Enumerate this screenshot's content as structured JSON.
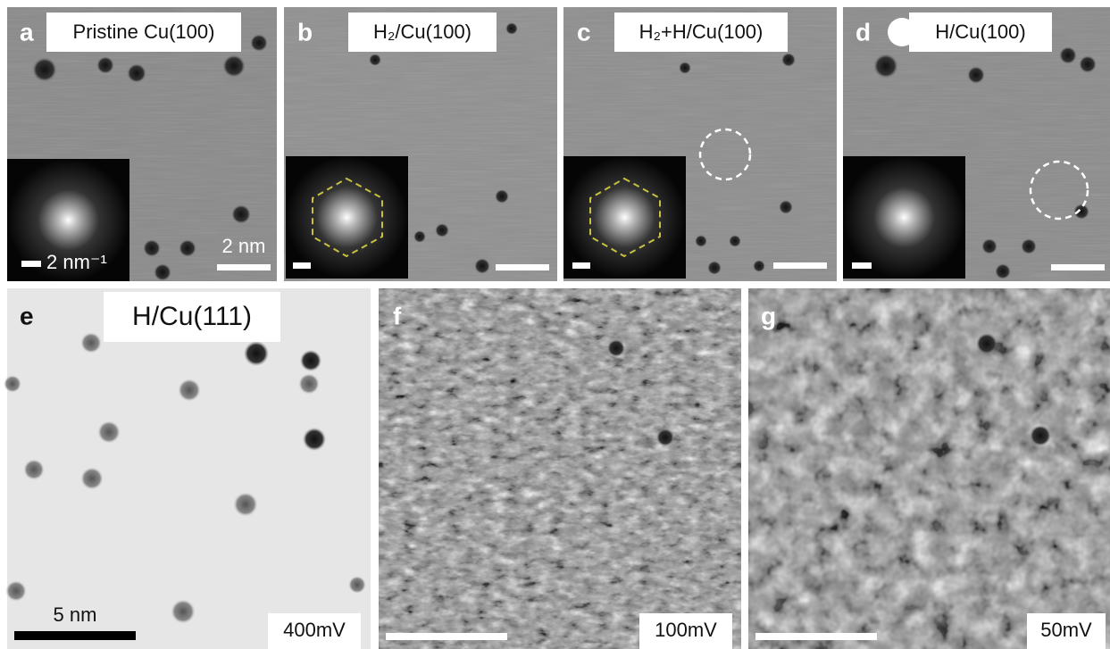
{
  "panels": [
    {
      "letter": "a",
      "label": "Pristine Cu(100)",
      "scale": "2 nm",
      "inset_scale": "2 nm⁻¹"
    },
    {
      "letter": "b",
      "label": "H₂/Cu(100)"
    },
    {
      "letter": "c",
      "label": "H₂+H/Cu(100)"
    },
    {
      "letter": "d",
      "label": "H/Cu(100)"
    },
    {
      "letter": "e",
      "label": "H/Cu(111)",
      "scale": "5 nm",
      "bias": "400mV"
    },
    {
      "letter": "f",
      "bias": "100mV"
    },
    {
      "letter": "g",
      "bias": "50mV"
    }
  ]
}
